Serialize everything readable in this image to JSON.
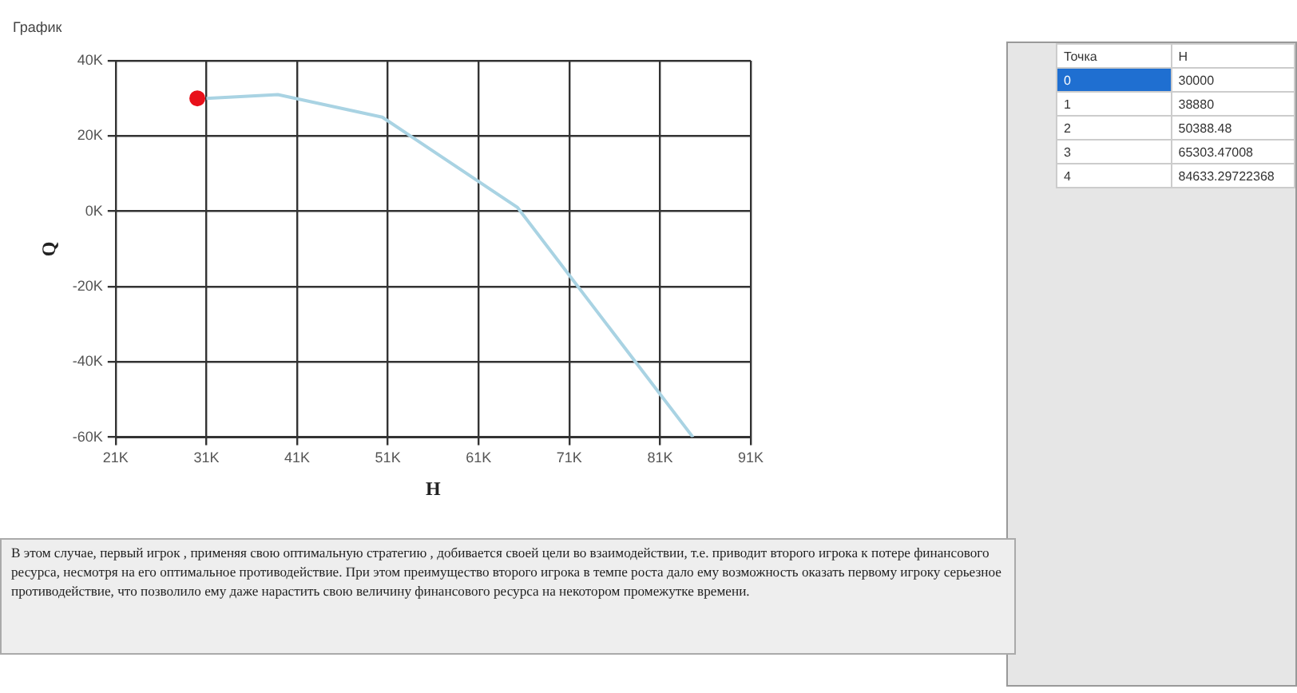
{
  "chart_data": {
    "type": "line",
    "title": "График",
    "xlabel": "H",
    "ylabel": "Q",
    "xlim": [
      21000,
      91000
    ],
    "xticks": [
      {
        "value": 21000,
        "label": "21K"
      },
      {
        "value": 31000,
        "label": "31K"
      },
      {
        "value": 41000,
        "label": "41K"
      },
      {
        "value": 51000,
        "label": "51K"
      },
      {
        "value": 61000,
        "label": "61K"
      },
      {
        "value": 71000,
        "label": "71K"
      },
      {
        "value": 81000,
        "label": "81K"
      },
      {
        "value": 91000,
        "label": "91K"
      }
    ],
    "ylim": [
      -60000,
      40000
    ],
    "yticks": [
      {
        "value": -60000,
        "label": "-60K"
      },
      {
        "value": -40000,
        "label": "-40K"
      },
      {
        "value": -20000,
        "label": "-20K"
      },
      {
        "value": 0,
        "label": "0K"
      },
      {
        "value": 20000,
        "label": "20K"
      },
      {
        "value": 40000,
        "label": "40K"
      }
    ],
    "grid": true,
    "legend": false,
    "series": [
      {
        "color": "#a9d3e3",
        "marker": "none",
        "x": [
          31000,
          38880,
          50388,
          65303,
          84633
        ],
        "values": [
          30000,
          31000,
          25000,
          1000,
          -60000
        ]
      },
      {
        "type": "scatter",
        "color": "#e8101a",
        "marker": "circle",
        "x": [
          30000
        ],
        "values": [
          30000
        ]
      }
    ],
    "annotations": [
      "Точка",
      "H",
      "0",
      "30000",
      "1",
      "38880",
      "2",
      "50388.48",
      "3",
      "65303.47008",
      "4",
      "84633.29722368",
      "В этом случае, первый игрок , применяя свою оптимальную стратегию , добивается своей цели во взаимодействии, т.е. приводит второго игрока к потере финансового ресурса, несмотря на его оптимальное противодействие. При этом преимущество второго игрока в темпе роста дало ему возможность оказать первому игроку серьезное противодействие, что позволило ему даже нарастить свою величину финансового ресурса на некотором промежутке времени."
    ]
  }
}
